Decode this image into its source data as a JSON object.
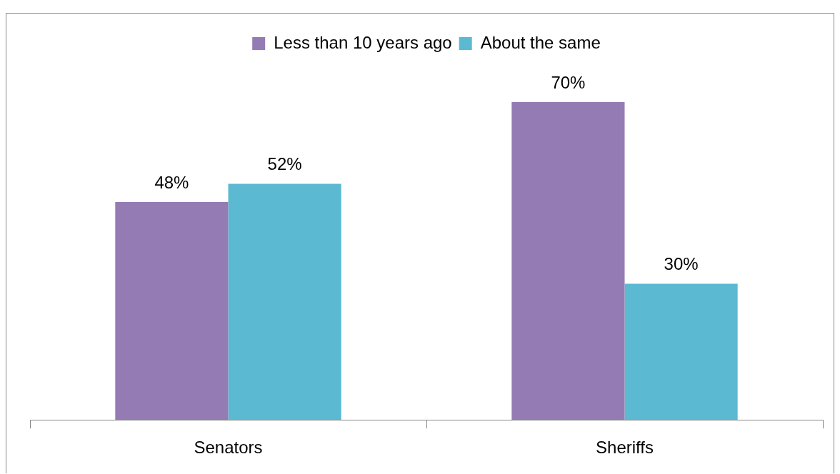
{
  "chart_data": {
    "type": "bar",
    "categories": [
      "Senators",
      "Sheriffs"
    ],
    "series": [
      {
        "name": "Less than 10 years ago",
        "color": "#957bb3",
        "values": [
          48,
          70
        ],
        "value_labels": [
          "48%",
          "70%"
        ]
      },
      {
        "name": "About the same",
        "color": "#5bb9d1",
        "values": [
          52,
          30
        ],
        "value_labels": [
          "52%",
          "30%"
        ]
      }
    ],
    "legend": "top",
    "grid": false
  }
}
